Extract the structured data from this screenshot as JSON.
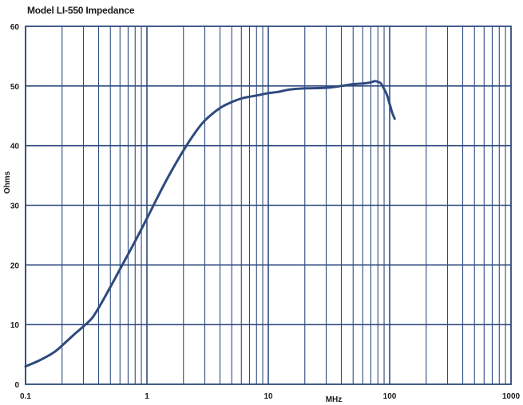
{
  "chart_data": {
    "type": "line",
    "title": "Model LI-550 Impedance",
    "xlabel": "MHz",
    "ylabel": "Ohms",
    "x_scale": "log",
    "xlim": [
      0.1,
      1000
    ],
    "ylim": [
      0,
      60
    ],
    "x_ticks": [
      "0.1",
      "1",
      "10",
      "100",
      "1000"
    ],
    "y_ticks": [
      "0",
      "10",
      "20",
      "30",
      "40",
      "50",
      "60"
    ],
    "grid": true,
    "line_color": "#2e4a7f",
    "grid_color": "#2e4a7f",
    "series": [
      {
        "x": [
          0.1,
          0.13,
          0.17,
          0.2,
          0.25,
          0.3,
          0.35,
          0.4,
          0.5,
          0.6,
          0.7,
          0.8,
          1.0,
          1.2,
          1.5,
          2.0,
          2.5,
          3.0,
          4.0,
          5.0,
          6.0,
          7.0,
          8.0,
          10,
          12,
          15,
          20,
          30,
          40,
          50,
          60,
          70,
          75,
          80,
          85,
          90,
          95,
          100,
          105,
          110
        ],
        "y": [
          3.0,
          4.0,
          5.3,
          6.5,
          8.3,
          9.7,
          11.0,
          12.8,
          16.3,
          19.3,
          21.8,
          24.0,
          27.8,
          31.0,
          34.8,
          39.2,
          42.2,
          44.2,
          46.3,
          47.3,
          47.9,
          48.2,
          48.4,
          48.8,
          49.0,
          49.4,
          49.6,
          49.7,
          50.0,
          50.3,
          50.4,
          50.6,
          50.8,
          50.7,
          50.4,
          49.5,
          48.5,
          47.0,
          45.5,
          44.5
        ]
      }
    ]
  }
}
